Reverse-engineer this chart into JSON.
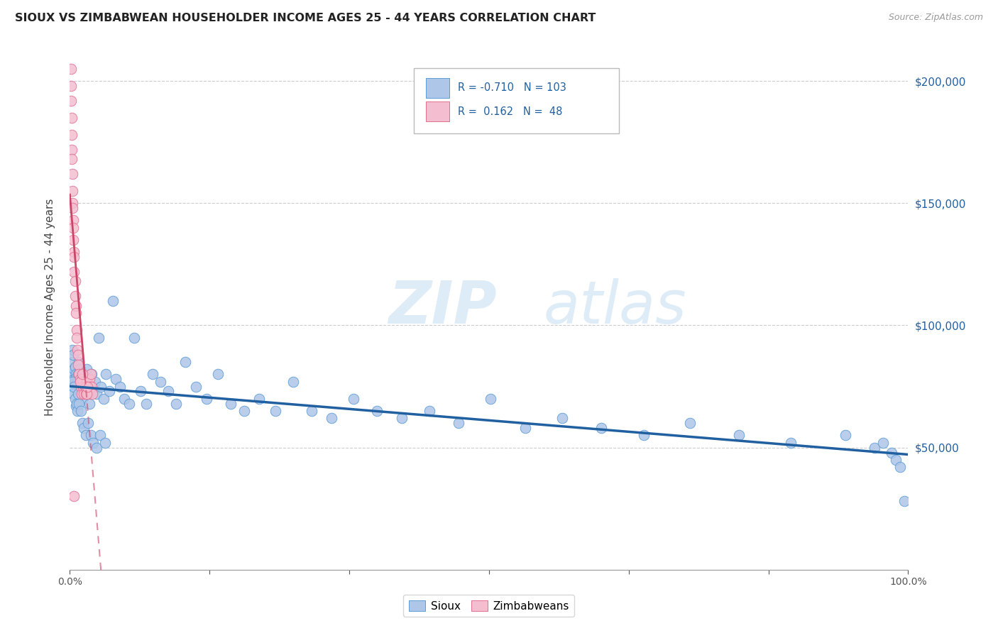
{
  "title": "SIOUX VS ZIMBABWEAN HOUSEHOLDER INCOME AGES 25 - 44 YEARS CORRELATION CHART",
  "source": "Source: ZipAtlas.com",
  "ylabel": "Householder Income Ages 25 - 44 years",
  "ytick_values": [
    0,
    50000,
    100000,
    150000,
    200000
  ],
  "ytick_right_labels": [
    "",
    "$50,000",
    "$100,000",
    "$150,000",
    "$200,000"
  ],
  "ylim": [
    0,
    215000
  ],
  "xlim": [
    0,
    1.0
  ],
  "sioux_color": "#aec6e8",
  "sioux_edge_color": "#5b9bd5",
  "zimbabwe_color": "#f4bdd0",
  "zimbabwe_edge_color": "#e07090",
  "trend_sioux_color": "#2060a0",
  "trend_zimbabwe_color": "#cc4466",
  "R_sioux": -0.71,
  "N_sioux": 103,
  "R_zimbabwe": 0.162,
  "N_zimbabwe": 48,
  "watermark_zip": "ZIP",
  "watermark_atlas": "atlas",
  "legend_labels": [
    "Sioux",
    "Zimbabweans"
  ],
  "sioux_x": [
    0.002,
    0.003,
    0.003,
    0.004,
    0.005,
    0.005,
    0.006,
    0.006,
    0.007,
    0.007,
    0.008,
    0.008,
    0.009,
    0.01,
    0.01,
    0.011,
    0.011,
    0.012,
    0.012,
    0.013,
    0.014,
    0.015,
    0.015,
    0.016,
    0.017,
    0.018,
    0.019,
    0.02,
    0.021,
    0.022,
    0.023,
    0.024,
    0.026,
    0.028,
    0.03,
    0.032,
    0.034,
    0.037,
    0.04,
    0.043,
    0.047,
    0.051,
    0.055,
    0.06,
    0.065,
    0.071,
    0.077,
    0.084,
    0.091,
    0.099,
    0.108,
    0.117,
    0.127,
    0.138,
    0.15,
    0.163,
    0.177,
    0.192,
    0.208,
    0.226,
    0.245,
    0.266,
    0.288,
    0.312,
    0.338,
    0.366,
    0.396,
    0.429,
    0.464,
    0.502,
    0.543,
    0.587,
    0.634,
    0.685,
    0.74,
    0.798,
    0.86,
    0.925,
    0.96,
    0.97,
    0.98,
    0.985,
    0.99,
    0.003,
    0.004,
    0.005,
    0.006,
    0.007,
    0.008,
    0.009,
    0.01,
    0.011,
    0.013,
    0.015,
    0.017,
    0.019,
    0.022,
    0.025,
    0.028,
    0.032,
    0.036,
    0.042,
    0.995
  ],
  "sioux_y": [
    80000,
    90000,
    85000,
    88000,
    82000,
    78000,
    83000,
    77000,
    80000,
    75000,
    79000,
    73000,
    77000,
    80000,
    72000,
    85000,
    76000,
    82000,
    74000,
    78000,
    76000,
    80000,
    70000,
    75000,
    73000,
    78000,
    76000,
    82000,
    77000,
    72000,
    68000,
    75000,
    80000,
    73000,
    77000,
    72000,
    95000,
    75000,
    70000,
    80000,
    73000,
    110000,
    78000,
    75000,
    70000,
    68000,
    95000,
    73000,
    68000,
    80000,
    77000,
    73000,
    68000,
    85000,
    75000,
    70000,
    80000,
    68000,
    65000,
    70000,
    65000,
    77000,
    65000,
    62000,
    70000,
    65000,
    62000,
    65000,
    60000,
    70000,
    58000,
    62000,
    58000,
    55000,
    60000,
    55000,
    52000,
    55000,
    50000,
    52000,
    48000,
    45000,
    42000,
    77000,
    72000,
    75000,
    70000,
    67000,
    68000,
    65000,
    72000,
    68000,
    65000,
    60000,
    58000,
    55000,
    60000,
    55000,
    52000,
    50000,
    55000,
    52000,
    28000
  ],
  "zimbabwe_x": [
    0.001,
    0.001,
    0.001,
    0.002,
    0.002,
    0.002,
    0.002,
    0.003,
    0.003,
    0.003,
    0.003,
    0.004,
    0.004,
    0.004,
    0.005,
    0.005,
    0.005,
    0.006,
    0.006,
    0.007,
    0.007,
    0.008,
    0.008,
    0.009,
    0.01,
    0.01,
    0.011,
    0.012,
    0.013,
    0.014,
    0.015,
    0.016,
    0.017,
    0.018,
    0.019,
    0.02,
    0.021,
    0.022,
    0.023,
    0.024,
    0.025,
    0.026,
    0.027,
    0.019,
    0.02,
    0.021,
    0.012,
    0.015
  ],
  "zimbabwe_y": [
    205000,
    198000,
    192000,
    185000,
    178000,
    172000,
    168000,
    162000,
    155000,
    150000,
    148000,
    143000,
    140000,
    135000,
    130000,
    128000,
    122000,
    118000,
    112000,
    108000,
    105000,
    98000,
    95000,
    90000,
    88000,
    84000,
    80000,
    78000,
    75000,
    72000,
    78000,
    75000,
    72000,
    75000,
    72000,
    78000,
    75000,
    72000,
    78000,
    75000,
    80000,
    75000,
    72000,
    75000,
    72000,
    75000,
    77000,
    80000
  ],
  "zimbabwe_outlier_x": [
    0.005
  ],
  "zimbabwe_outlier_y": [
    30000
  ]
}
